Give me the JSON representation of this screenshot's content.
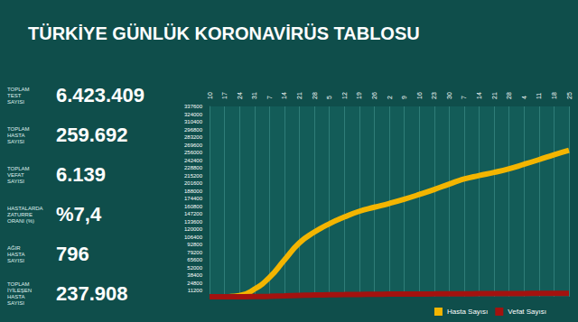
{
  "chart_data": {
    "type": "line",
    "title": "TÜRKİYE GÜNLÜK KORONAVİRÜS TABLOSU",
    "categories": [
      "10",
      "17",
      "24",
      "31",
      "7",
      "14",
      "21",
      "28",
      "5",
      "12",
      "19",
      "26",
      "2",
      "9",
      "16",
      "23",
      "30",
      "7",
      "14",
      "21",
      "28",
      "4",
      "11",
      "18",
      "25"
    ],
    "series": [
      {
        "name": "Hasta Sayısı",
        "color": "#f3b500",
        "values": [
          0,
          47,
          1872,
          13531,
          34109,
          65111,
          95591,
          114653,
          129491,
          141475,
          151615,
          158762,
          165555,
          173036,
          181298,
          190165,
          199906,
          208938,
          214993,
          220572,
          227019,
          234934,
          243180,
          251805,
          259692
        ]
      },
      {
        "name": "Vefat Sayısı",
        "color": "#a3120f",
        "values": [
          0,
          1,
          44,
          214,
          725,
          1403,
          2259,
          3081,
          3461,
          3841,
          4199,
          4397,
          4609,
          4778,
          4905,
          5001,
          5115,
          5260,
          5402,
          5526,
          5645,
          5784,
          5941,
          6058,
          6139
        ]
      }
    ],
    "ylim": [
      0,
      337600
    ],
    "yticks": [
      11200,
      24800,
      38400,
      52000,
      65600,
      79200,
      92800,
      106400,
      120000,
      133600,
      147200,
      160800,
      174400,
      188000,
      201600,
      215200,
      228800,
      242400,
      256000,
      269600,
      283200,
      296800,
      310400,
      324000,
      337600
    ],
    "grid": true,
    "legend": "bottom right"
  },
  "stats": [
    {
      "label": "TOPLAM\nTEST\nSAYISI",
      "value": "6.423.409"
    },
    {
      "label": "TOPLAM\nHASTA\nSAYISI",
      "value": "259.692"
    },
    {
      "label": "TOPLAM\nVEFAT\nSAYISI",
      "value": "6.139"
    },
    {
      "label": "HASTALARDA\nZATURRE\nORANI (%)",
      "value": "%7,4"
    },
    {
      "label": "AĞIR\nHASTA\nSAYISI",
      "value": "796"
    },
    {
      "label": "TOPLAM\nİYİLEŞEN\nHASTA\nSAYISI",
      "value": "237.908"
    }
  ]
}
